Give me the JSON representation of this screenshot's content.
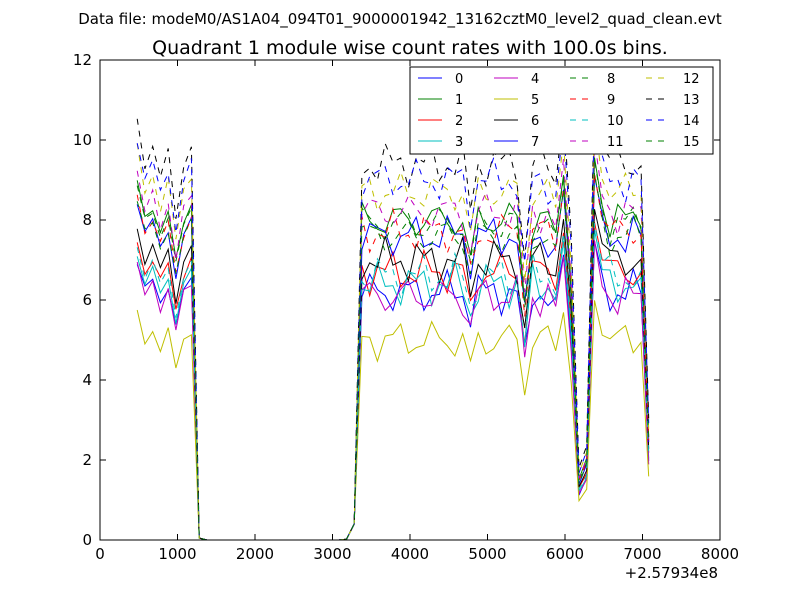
{
  "chart_data": {
    "type": "line",
    "suptitle": "Data file: modeM0/AS1A04_094T01_9000001942_13162cztM0_level2_quad_clean.evt",
    "title": "Quadrant 1 module wise count rates with 100.0s bins.",
    "xlabel": "",
    "ylabel": "",
    "xlim": [
      0,
      8000
    ],
    "ylim": [
      0,
      12
    ],
    "x_ticks": [
      0,
      1000,
      2000,
      3000,
      4000,
      5000,
      6000,
      7000,
      8000
    ],
    "x_tick_labels": [
      "0",
      "1000",
      "2000",
      "3000",
      "4000",
      "5000",
      "6000",
      "7000",
      "8000"
    ],
    "y_ticks": [
      0,
      2,
      4,
      6,
      8,
      10,
      12
    ],
    "y_tick_labels": [
      "0",
      "2",
      "4",
      "6",
      "8",
      "10",
      "12"
    ],
    "x_offset_label": "+2.57934e8",
    "legend_position": "top-right",
    "legend_columns": 4,
    "x": [
      480,
      580,
      680,
      780,
      880,
      980,
      1080,
      1180,
      1280,
      1380,
      1480,
      1580,
      1680,
      1780,
      1880,
      1980,
      2080,
      2180,
      2280,
      2380,
      2480,
      2580,
      2680,
      2780,
      2880,
      2980,
      3080,
      3180,
      3280,
      3380,
      3480,
      3580,
      3680,
      3780,
      3880,
      3980,
      4080,
      4180,
      4280,
      4380,
      4480,
      4580,
      4680,
      4780,
      4880,
      4980,
      5080,
      5180,
      5280,
      5380,
      5480,
      5580,
      5680,
      5780,
      5880,
      5980,
      6080,
      6180,
      6280,
      6380,
      6480,
      6580,
      6680,
      6780,
      6880,
      6980,
      7080
    ],
    "series": [
      {
        "name": "0",
        "color": "#0000ff",
        "dashed": false,
        "base": 6.2
      },
      {
        "name": "1",
        "color": "#008000",
        "dashed": false,
        "base": 8.0
      },
      {
        "name": "2",
        "color": "#ff0000",
        "dashed": false,
        "base": 6.7
      },
      {
        "name": "3",
        "color": "#00bfbf",
        "dashed": false,
        "base": 6.4
      },
      {
        "name": "4",
        "color": "#bf00bf",
        "dashed": false,
        "base": 6.1
      },
      {
        "name": "5",
        "color": "#bfbf00",
        "dashed": false,
        "base": 5.0
      },
      {
        "name": "6",
        "color": "#000000",
        "dashed": false,
        "base": 7.0
      },
      {
        "name": "7",
        "color": "#0000ff",
        "dashed": false,
        "base": 7.6
      },
      {
        "name": "8",
        "color": "#008000",
        "dashed": true,
        "base": 7.9
      },
      {
        "name": "9",
        "color": "#ff0000",
        "dashed": true,
        "base": 7.7
      },
      {
        "name": "10",
        "color": "#00bfbf",
        "dashed": true,
        "base": 6.6
      },
      {
        "name": "11",
        "color": "#bf00bf",
        "dashed": true,
        "base": 8.2
      },
      {
        "name": "12",
        "color": "#bfbf00",
        "dashed": true,
        "base": 8.7
      },
      {
        "name": "13",
        "color": "#000000",
        "dashed": true,
        "base": 9.4
      },
      {
        "name": "14",
        "color": "#0000ff",
        "dashed": true,
        "base": 9.0
      },
      {
        "name": "15",
        "color": "#008000",
        "dashed": true,
        "base": 7.6
      }
    ]
  }
}
